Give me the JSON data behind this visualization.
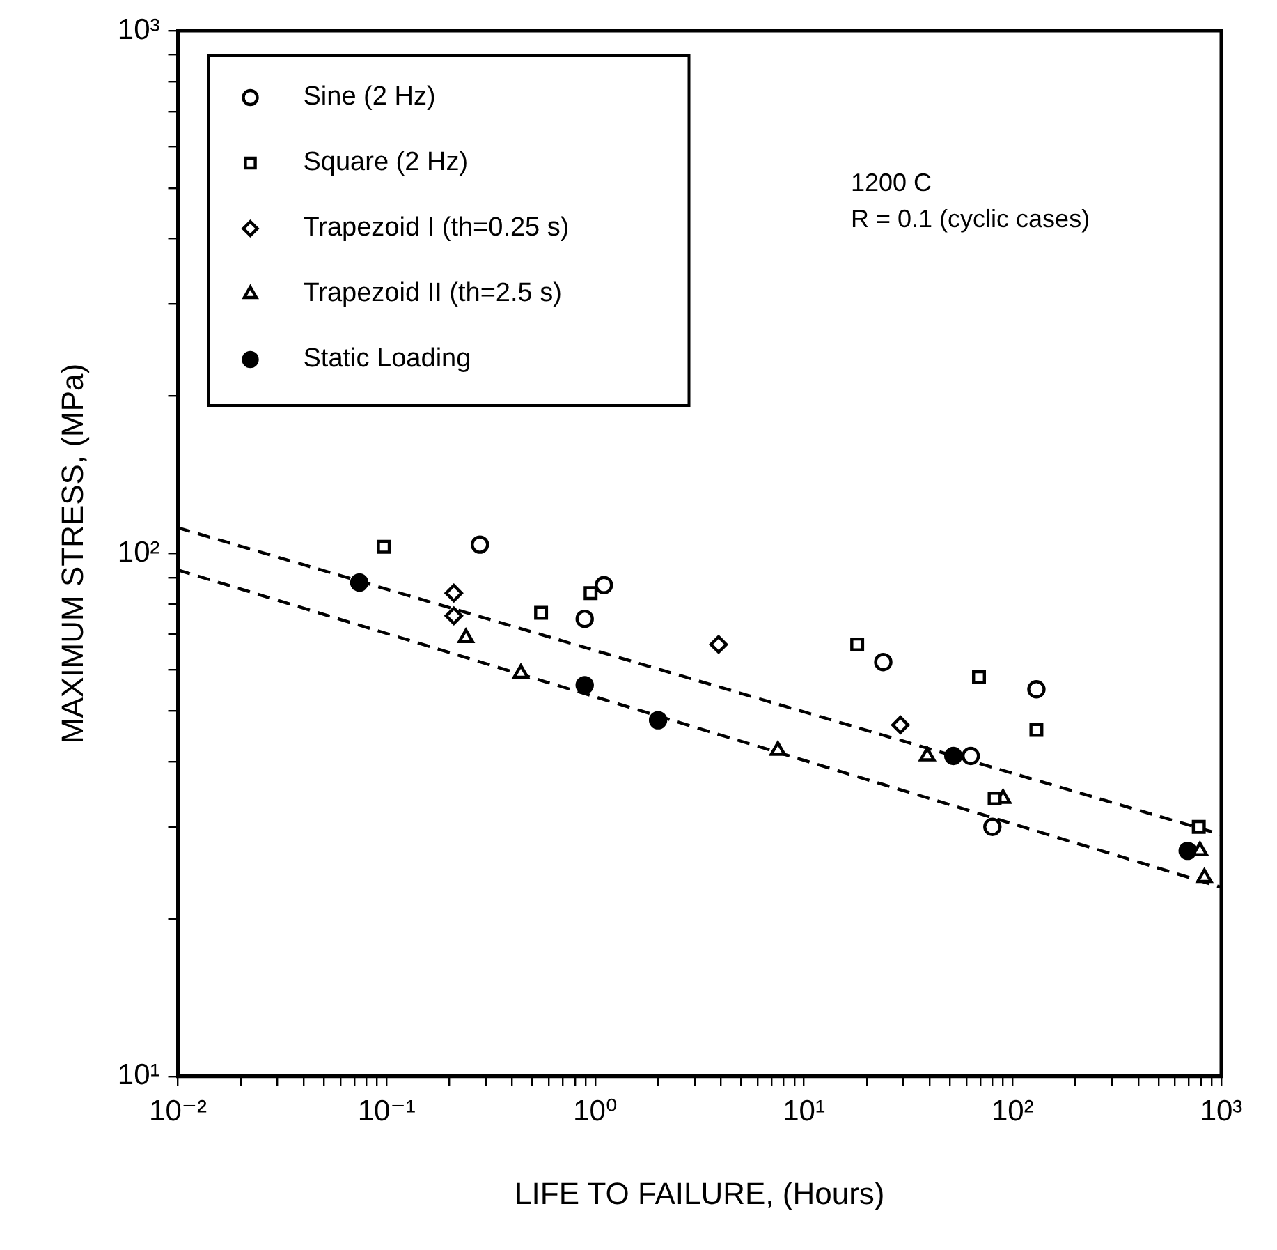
{
  "chart_data": {
    "type": "scatter",
    "xlabel": "LIFE TO FAILURE, (Hours)",
    "ylabel": "MAXIMUM STRESS, (MPa)",
    "log": "xy",
    "grid": false,
    "legend": "top left",
    "xlim": [
      0.01,
      1000
    ],
    "ylim": [
      10,
      1000
    ],
    "xticks": [
      {
        "value": 0.01,
        "label": "10⁻²"
      },
      {
        "value": 0.02,
        "label": null
      },
      {
        "value": 0.03,
        "label": null
      },
      {
        "value": 0.04,
        "label": null
      },
      {
        "value": 0.05,
        "label": null
      },
      {
        "value": 0.06,
        "label": null
      },
      {
        "value": 0.07,
        "label": null
      },
      {
        "value": 0.08,
        "label": null
      },
      {
        "value": 0.09,
        "label": null
      },
      {
        "value": 0.1,
        "label": "10⁻¹"
      },
      {
        "value": 0.2,
        "label": null
      },
      {
        "value": 0.3,
        "label": null
      },
      {
        "value": 0.4,
        "label": null
      },
      {
        "value": 0.5,
        "label": null
      },
      {
        "value": 0.6,
        "label": null
      },
      {
        "value": 0.7,
        "label": null
      },
      {
        "value": 0.8,
        "label": null
      },
      {
        "value": 0.9,
        "label": null
      },
      {
        "value": 1,
        "label": "10⁰"
      },
      {
        "value": 2,
        "label": null
      },
      {
        "value": 3,
        "label": null
      },
      {
        "value": 4,
        "label": null
      },
      {
        "value": 5,
        "label": null
      },
      {
        "value": 6,
        "label": null
      },
      {
        "value": 7,
        "label": null
      },
      {
        "value": 8,
        "label": null
      },
      {
        "value": 9,
        "label": null
      },
      {
        "value": 10,
        "label": "10¹"
      },
      {
        "value": 20,
        "label": null
      },
      {
        "value": 30,
        "label": null
      },
      {
        "value": 40,
        "label": null
      },
      {
        "value": 50,
        "label": null
      },
      {
        "value": 60,
        "label": null
      },
      {
        "value": 70,
        "label": null
      },
      {
        "value": 80,
        "label": null
      },
      {
        "value": 90,
        "label": null
      },
      {
        "value": 100,
        "label": "10²"
      },
      {
        "value": 200,
        "label": null
      },
      {
        "value": 300,
        "label": null
      },
      {
        "value": 400,
        "label": null
      },
      {
        "value": 500,
        "label": null
      },
      {
        "value": 600,
        "label": null
      },
      {
        "value": 700,
        "label": null
      },
      {
        "value": 800,
        "label": null
      },
      {
        "value": 900,
        "label": null
      },
      {
        "value": 1000,
        "label": "10³"
      }
    ],
    "yticks": [
      {
        "value": 10,
        "label": "10¹"
      },
      {
        "value": 20,
        "label": null
      },
      {
        "value": 30,
        "label": null
      },
      {
        "value": 40,
        "label": null
      },
      {
        "value": 50,
        "label": null
      },
      {
        "value": 60,
        "label": null
      },
      {
        "value": 70,
        "label": null
      },
      {
        "value": 80,
        "label": null
      },
      {
        "value": 90,
        "label": null
      },
      {
        "value": 100,
        "label": "10²"
      },
      {
        "value": 200,
        "label": null
      },
      {
        "value": 300,
        "label": null
      },
      {
        "value": 400,
        "label": null
      },
      {
        "value": 500,
        "label": null
      },
      {
        "value": 600,
        "label": null
      },
      {
        "value": 700,
        "label": null
      },
      {
        "value": 800,
        "label": null
      },
      {
        "value": 900,
        "label": null
      },
      {
        "value": 1000,
        "label": "10³"
      }
    ],
    "annotations": [
      "1200 C",
      "R = 0.1 (cyclic cases)"
    ],
    "series": [
      {
        "name": "Sine (2 Hz)",
        "color": "#000000",
        "marker": "circle",
        "x": [
          0.28,
          1.1,
          0.89,
          24,
          130,
          63,
          80
        ],
        "values": [
          104,
          87,
          75,
          62,
          55,
          41,
          30
        ]
      },
      {
        "name": "Square (2 Hz)",
        "color": "#000000",
        "marker": "square",
        "x": [
          0.097,
          0.55,
          0.95,
          18,
          69,
          130,
          82,
          780
        ],
        "values": [
          103,
          77,
          84,
          67,
          58,
          46,
          34,
          30
        ]
      },
      {
        "name": "Trapezoid I (th=0.25 s)",
        "color": "#000000",
        "marker": "diamond",
        "x": [
          0.21,
          0.21,
          3.9,
          29
        ],
        "values": [
          84,
          76,
          67,
          47
        ]
      },
      {
        "name": "Trapezoid II (th=2.5 s)",
        "color": "#000000",
        "marker": "triangle",
        "x": [
          0.24,
          0.44,
          7.5,
          28,
          39,
          90,
          790,
          830
        ],
        "values": [
          69,
          59,
          42,
          null,
          41,
          34,
          27,
          24
        ]
      },
      {
        "name": "Static Loading",
        "color": "#000000",
        "marker": "circle",
        "x": [
          0.074,
          0.89,
          2,
          52,
          690
        ],
        "values": [
          88,
          56,
          48,
          41,
          27
        ]
      },
      {
        "type": "line",
        "color": "#000000",
        "marker": "none",
        "line_style": "dashed",
        "x": [
          0.01,
          1000
        ],
        "values": [
          112,
          29
        ]
      },
      {
        "type": "line",
        "color": "#000000",
        "marker": "none",
        "line_style": "dashed",
        "x": [
          0.01,
          1000
        ],
        "values": [
          93,
          23
        ]
      }
    ]
  }
}
